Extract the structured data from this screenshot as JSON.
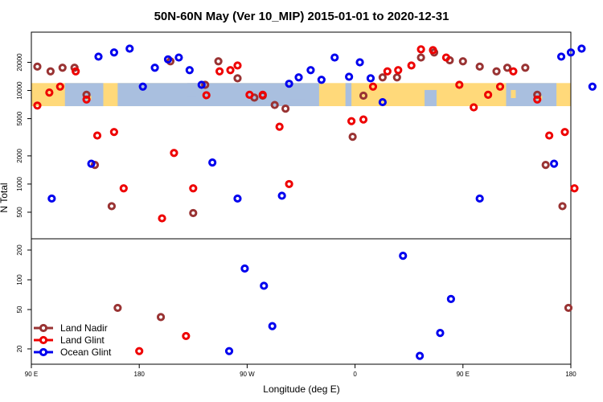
{
  "chart_data": {
    "type": "scatter",
    "title": "50N-60N May (Ver 10_MIP)   2015-01-01 to 2020-12-31",
    "xlabel": "Longitude (deg E)",
    "ylabel": "N Total",
    "x_tick_labels": [
      "90 E",
      "180",
      "90 W",
      "0",
      "90 E",
      "180"
    ],
    "x_ticks": [
      90,
      180,
      270,
      360,
      450,
      540
    ],
    "xlim": [
      90,
      540
    ],
    "x_note": "x values are continuous longitude in deg E running from 90 E around through 180 and 0 (360) to 180 (540)",
    "upper_panel": {
      "yscale": "log",
      "ylim": [
        260,
        42000
      ],
      "y_tick_labels": [
        "500",
        "1000",
        "2000",
        "5000",
        "10000",
        "20000"
      ],
      "y_ticks": [
        500,
        1000,
        2000,
        5000,
        10000,
        20000
      ],
      "map_band": {
        "ymin": 6800,
        "ymax": 12000,
        "land_color": "#ffd97a",
        "ocean_color": "#a9bfdf"
      }
    },
    "lower_panel": {
      "yscale": "log",
      "ylim": [
        14,
        260
      ],
      "y_tick_labels": [
        "20",
        "50",
        "100",
        "200"
      ],
      "y_ticks": [
        20,
        50,
        100,
        200
      ]
    },
    "legend": {
      "position": "bottom-left",
      "entries": [
        "Land Nadir",
        "Land Glint",
        "Ocean Glint"
      ]
    },
    "series": [
      {
        "name": "Land Nadir",
        "color": "#993333",
        "upper": [
          [
            95,
            18000
          ],
          [
            106,
            16000
          ],
          [
            116,
            17500
          ],
          [
            126,
            17500
          ],
          [
            136,
            9000
          ],
          [
            143,
            1600
          ],
          [
            157,
            580
          ],
          [
            206,
            20500
          ],
          [
            225,
            490
          ],
          [
            235,
            11500
          ],
          [
            246,
            20500
          ],
          [
            262,
            13500
          ],
          [
            276,
            8400
          ],
          [
            283,
            8800
          ],
          [
            293,
            7000
          ],
          [
            302,
            6400
          ],
          [
            358,
            3200
          ],
          [
            367,
            8800
          ],
          [
            383,
            13800
          ],
          [
            395,
            13800
          ],
          [
            415,
            22500
          ],
          [
            426,
            25500
          ],
          [
            439,
            21000
          ],
          [
            450,
            20500
          ],
          [
            464,
            18000
          ],
          [
            478,
            16000
          ],
          [
            487,
            17500
          ],
          [
            502,
            17500
          ],
          [
            512,
            9000
          ],
          [
            519,
            1600
          ],
          [
            533,
            580
          ]
        ],
        "lower": [
          [
            162,
            52
          ],
          [
            198,
            42
          ],
          [
            538,
            52
          ]
        ]
      },
      {
        "name": "Land Glint",
        "color": "#ee0000",
        "upper": [
          [
            95,
            6900
          ],
          [
            105,
            9500
          ],
          [
            114,
            11000
          ],
          [
            127,
            16000
          ],
          [
            136,
            8000
          ],
          [
            145,
            3300
          ],
          [
            159,
            3600
          ],
          [
            167,
            900
          ],
          [
            199,
            430
          ],
          [
            209,
            2150
          ],
          [
            225,
            900
          ],
          [
            236,
            8900
          ],
          [
            247,
            16000
          ],
          [
            256,
            16500
          ],
          [
            262,
            18500
          ],
          [
            272,
            9000
          ],
          [
            283,
            9000
          ],
          [
            297,
            4100
          ],
          [
            305,
            1000
          ],
          [
            357,
            4700
          ],
          [
            367,
            4900
          ],
          [
            375,
            11000
          ],
          [
            387,
            16000
          ],
          [
            396,
            16500
          ],
          [
            407,
            18500
          ],
          [
            415,
            27500
          ],
          [
            425,
            27000
          ],
          [
            436,
            22500
          ],
          [
            447,
            11500
          ],
          [
            459,
            6600
          ],
          [
            471,
            9000
          ],
          [
            481,
            11000
          ],
          [
            492,
            16000
          ],
          [
            512,
            8000
          ],
          [
            522,
            3300
          ],
          [
            535,
            3600
          ],
          [
            543,
            900
          ]
        ],
        "lower": [
          [
            180,
            19
          ],
          [
            219,
            27
          ]
        ]
      },
      {
        "name": "Ocean Glint",
        "color": "#0000ee",
        "upper": [
          [
            107,
            700
          ],
          [
            140,
            1650
          ],
          [
            146,
            23000
          ],
          [
            159,
            25500
          ],
          [
            172,
            28000
          ],
          [
            183,
            11000
          ],
          [
            193,
            17500
          ],
          [
            204,
            21500
          ],
          [
            213,
            22500
          ],
          [
            222,
            16500
          ],
          [
            232,
            11500
          ],
          [
            241,
            1700
          ],
          [
            262,
            700
          ],
          [
            299,
            750
          ],
          [
            305,
            11800
          ],
          [
            313,
            13800
          ],
          [
            323,
            16500
          ],
          [
            332,
            13000
          ],
          [
            343,
            22500
          ],
          [
            355,
            14000
          ],
          [
            364,
            20000
          ],
          [
            373,
            13500
          ],
          [
            383,
            7500
          ],
          [
            464,
            700
          ],
          [
            526,
            1650
          ],
          [
            532,
            23000
          ],
          [
            540,
            25500
          ],
          [
            549,
            28000
          ],
          [
            558,
            11000
          ]
        ],
        "lower": [
          [
            255,
            19
          ],
          [
            268,
            130
          ],
          [
            284,
            87
          ],
          [
            291,
            34
          ],
          [
            400,
            175
          ],
          [
            414,
            17
          ],
          [
            431,
            29
          ],
          [
            440,
            64
          ]
        ]
      }
    ]
  }
}
